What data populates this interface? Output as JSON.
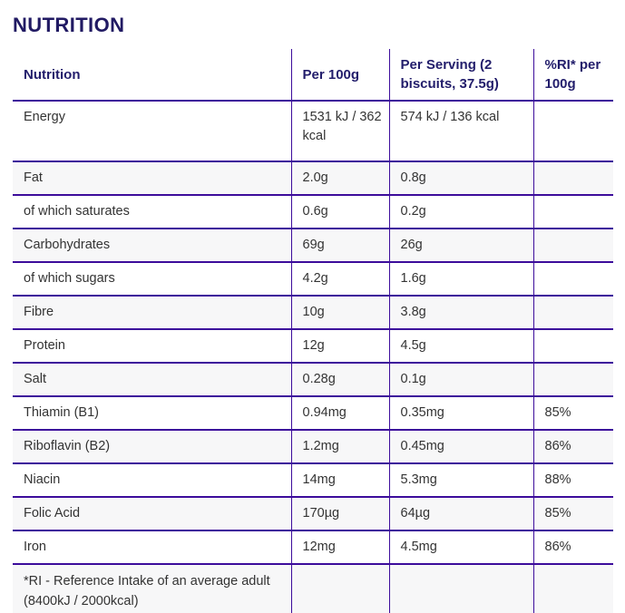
{
  "page": {
    "title": "NUTRITION"
  },
  "colors": {
    "title_text": "#211a63",
    "header_text": "#221d6b",
    "table_border": "#3c0c9b",
    "body_text": "#333333",
    "alt_row_background": "#f7f7f8"
  },
  "table": {
    "columns": [
      {
        "label": "Nutrition"
      },
      {
        "label": "Per 100g"
      },
      {
        "label": "Per Serving (2 biscuits, 37.5g)"
      },
      {
        "label": "%RI* per 100g"
      }
    ],
    "rows": [
      {
        "label": "Energy",
        "per_100g": "1531 kJ / 362 kcal",
        "per_serving": "574 kJ / 136 kcal",
        "ri_per_100g": ""
      },
      {
        "label": "Fat",
        "per_100g": "2.0g",
        "per_serving": "0.8g",
        "ri_per_100g": ""
      },
      {
        "label": "of which saturates",
        "per_100g": "0.6g",
        "per_serving": "0.2g",
        "ri_per_100g": ""
      },
      {
        "label": "Carbohydrates",
        "per_100g": "69g",
        "per_serving": "26g",
        "ri_per_100g": ""
      },
      {
        "label": "of which sugars",
        "per_100g": "4.2g",
        "per_serving": "1.6g",
        "ri_per_100g": ""
      },
      {
        "label": "Fibre",
        "per_100g": "10g",
        "per_serving": "3.8g",
        "ri_per_100g": ""
      },
      {
        "label": "Protein",
        "per_100g": "12g",
        "per_serving": "4.5g",
        "ri_per_100g": ""
      },
      {
        "label": "Salt",
        "per_100g": "0.28g",
        "per_serving": "0.1g",
        "ri_per_100g": ""
      },
      {
        "label": "Thiamin (B1)",
        "per_100g": "0.94mg",
        "per_serving": "0.35mg",
        "ri_per_100g": "85%"
      },
      {
        "label": "Riboflavin (B2)",
        "per_100g": "1.2mg",
        "per_serving": "0.45mg",
        "ri_per_100g": "86%"
      },
      {
        "label": "Niacin",
        "per_100g": "14mg",
        "per_serving": "5.3mg",
        "ri_per_100g": "88%"
      },
      {
        "label": "Folic Acid",
        "per_100g": "170µg",
        "per_serving": "64µg",
        "ri_per_100g": "85%"
      },
      {
        "label": "Iron",
        "per_100g": "12mg",
        "per_serving": "4.5mg",
        "ri_per_100g": "86%"
      }
    ],
    "footnote": "*RI - Reference Intake of an average adult (8400kJ / 2000kcal)"
  }
}
